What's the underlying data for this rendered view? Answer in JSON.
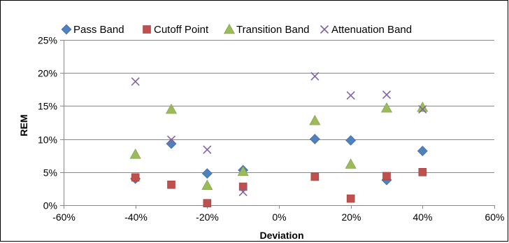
{
  "chart_data": {
    "type": "scatter",
    "title": "",
    "xlabel": "Deviation",
    "ylabel": "REM",
    "xlim": [
      -60,
      60
    ],
    "ylim": [
      0,
      25
    ],
    "x_ticks": [
      -60,
      -40,
      -20,
      0,
      20,
      40,
      60
    ],
    "y_ticks": [
      0,
      5,
      10,
      15,
      20,
      25
    ],
    "x_tick_labels": [
      "-60%",
      "-40%",
      "-20%",
      "0%",
      "20%",
      "40%",
      "60%"
    ],
    "y_tick_labels": [
      "0%",
      "5%",
      "10%",
      "15%",
      "20%",
      "25%"
    ],
    "grid": "horizontal",
    "legend_position": "top",
    "series": [
      {
        "name": "Pass Band",
        "marker": "diamond",
        "color": "#4F81BD",
        "points": [
          [
            -40,
            4.0
          ],
          [
            -30,
            9.3
          ],
          [
            -20,
            4.8
          ],
          [
            -10,
            5.3
          ],
          [
            10,
            10.0
          ],
          [
            20,
            9.8
          ],
          [
            30,
            3.8
          ],
          [
            40,
            8.2
          ]
        ]
      },
      {
        "name": "Cutoff Point",
        "marker": "square",
        "color": "#C0504D",
        "points": [
          [
            -40,
            4.2
          ],
          [
            -30,
            3.1
          ],
          [
            -20,
            0.3
          ],
          [
            -10,
            2.8
          ],
          [
            10,
            4.3
          ],
          [
            20,
            1.0
          ],
          [
            30,
            4.4
          ],
          [
            40,
            5.0
          ]
        ]
      },
      {
        "name": "Transition Band",
        "marker": "triangle",
        "color": "#9BBB59",
        "points": [
          [
            -40,
            7.7
          ],
          [
            -30,
            14.5
          ],
          [
            -20,
            3.0
          ],
          [
            -10,
            5.1
          ],
          [
            10,
            12.8
          ],
          [
            20,
            6.2
          ],
          [
            30,
            14.7
          ],
          [
            40,
            14.8
          ]
        ]
      },
      {
        "name": "Attenuation Band",
        "marker": "x",
        "color": "#8064A2",
        "points": [
          [
            -40,
            18.7
          ],
          [
            -30,
            9.9
          ],
          [
            -20,
            8.4
          ],
          [
            -10,
            2.0
          ],
          [
            10,
            19.5
          ],
          [
            20,
            16.6
          ],
          [
            30,
            16.7
          ],
          [
            40,
            14.5
          ]
        ]
      }
    ]
  }
}
